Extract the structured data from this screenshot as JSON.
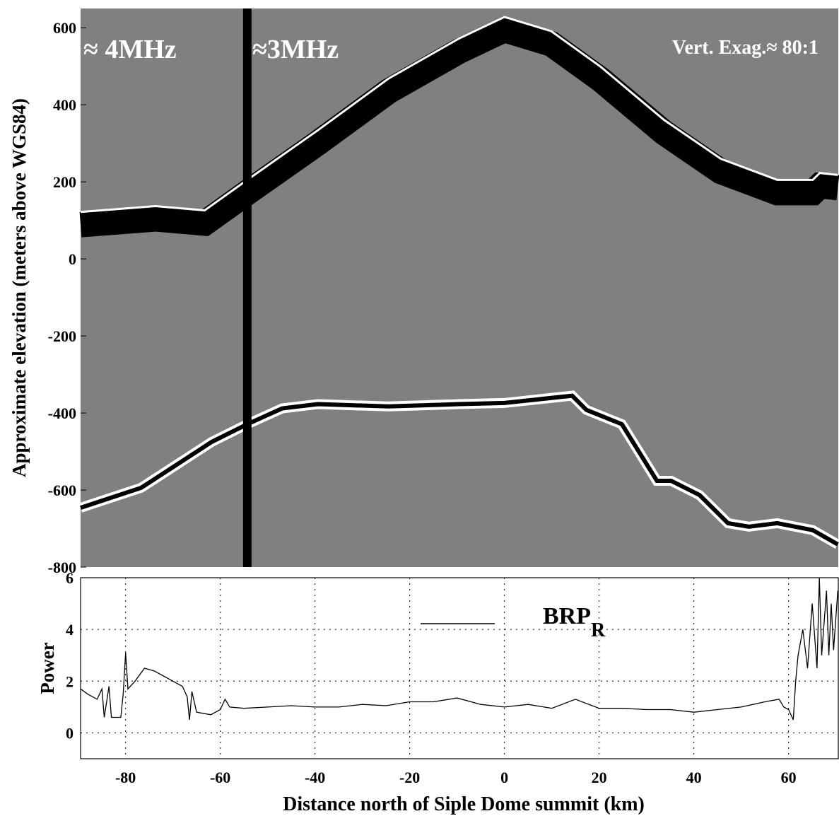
{
  "chart_data": [
    {
      "type": "radargram",
      "ylabel": "Approximate elevation (meters above WGS84)",
      "annotations": [
        "≈ 4MHz",
        "≈3MHz",
        "Vert. Exag.≈ 80:1"
      ],
      "xlim": [
        -89.5,
        70.5
      ],
      "ylim": [
        -800,
        650
      ],
      "yticks": [
        -800,
        -600,
        -400,
        -200,
        0,
        200,
        400,
        600
      ],
      "vline": -54.3,
      "series": [
        {
          "color": "#ffffff",
          "x": [
            -89.5,
            -73.7,
            -63.3,
            -54.3,
            -39.4,
            -24.5,
            -9.6,
            0,
            9.9,
            20.3,
            33.7,
            45.7,
            57.6,
            65.1,
            66.6,
            70.4
          ],
          "values": [
            122,
            137,
            126,
            205,
            334,
            468,
            572,
            628,
            591,
            499,
            361,
            260,
            205,
            205,
            223,
            218
          ]
        },
        {
          "color": "#000000",
          "x": [
            -89.5,
            -76.7,
            -61.8,
            -54.3,
            -46.9,
            -39.4,
            -24.5,
            -9.6,
            0,
            14.3,
            17.3,
            24.8,
            32.2,
            35.2,
            41.2,
            47.2,
            51.6,
            57.6,
            65.1,
            70.4
          ],
          "values": [
            -646,
            -594,
            -475,
            -429,
            -388,
            -377,
            -383,
            -377,
            -374,
            -355,
            -392,
            -429,
            -576,
            -576,
            -613,
            -686,
            -695,
            -686,
            -704,
            -741
          ]
        }
      ]
    },
    {
      "type": "line",
      "xlabel": "Distance north of Siple Dome summit (km)",
      "ylabel": "Power",
      "xlim": [
        -89.5,
        70.5
      ],
      "ylim": [
        -1,
        6
      ],
      "xticks": [
        -80,
        -60,
        -40,
        -20,
        0,
        20,
        40,
        60
      ],
      "yticks": [
        0,
        2,
        4,
        6
      ],
      "grid": true,
      "series": [
        {
          "name": "BRP",
          "name_subscript": "R",
          "color": "#000000",
          "x": [
            -89.5,
            -88,
            -86,
            -85,
            -84.5,
            -83.5,
            -83,
            -81,
            -80.5,
            -80,
            -79.5,
            -78,
            -76,
            -74,
            -72,
            -70,
            -68,
            -67,
            -66.5,
            -66,
            -65,
            -62,
            -60,
            -59,
            -58,
            -55,
            -50,
            -45,
            -40,
            -35,
            -30,
            -25,
            -20,
            -15,
            -10,
            -5,
            0,
            5,
            10,
            15,
            20,
            25,
            30,
            35,
            40,
            45,
            50,
            55,
            58,
            59,
            60,
            61,
            61.5,
            62,
            63,
            64,
            65,
            66,
            66.5,
            67,
            68,
            68.5,
            69,
            69.5,
            70.4
          ],
          "values": [
            1.7,
            1.5,
            1.3,
            1.7,
            0.6,
            1.8,
            0.6,
            0.6,
            1.5,
            3.1,
            1.7,
            2.0,
            2.5,
            2.4,
            2.2,
            2.0,
            1.8,
            1.4,
            0.5,
            1.6,
            0.8,
            0.7,
            0.9,
            1.3,
            1.0,
            0.95,
            1.0,
            1.05,
            1.0,
            1.0,
            1.1,
            1.05,
            1.2,
            1.2,
            1.35,
            1.1,
            1.0,
            1.1,
            0.95,
            1.3,
            0.95,
            0.95,
            0.9,
            0.9,
            0.8,
            0.9,
            1.0,
            1.2,
            1.3,
            1.0,
            0.9,
            0.5,
            2.0,
            3.0,
            4.0,
            2.5,
            5.0,
            2.5,
            6,
            3.0,
            5.5,
            3,
            5,
            3.2,
            5.5
          ]
        }
      ]
    }
  ]
}
